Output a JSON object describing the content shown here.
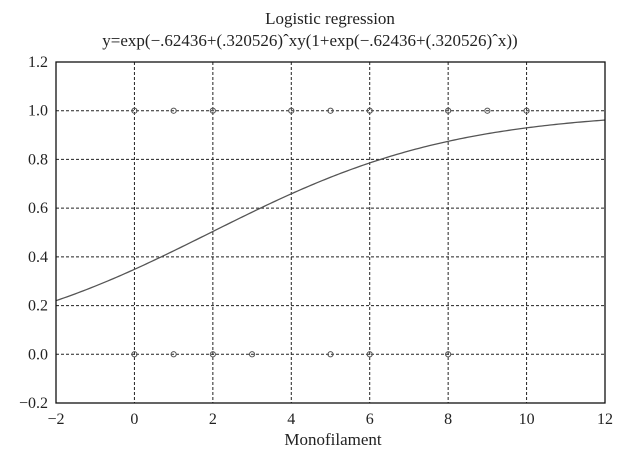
{
  "chart_data": {
    "type": "scatter",
    "title": "Logistic regression",
    "subtitle": "y=exp(−.62436+(.320526)ˆxy(1+exp(−.62436+(.320526)ˆx))",
    "xlabel": "Monofilament",
    "ylabel": "",
    "xlim": [
      -2,
      12
    ],
    "ylim": [
      -0.2,
      1.2
    ],
    "xticks": [
      -2,
      0,
      2,
      4,
      6,
      8,
      10,
      12
    ],
    "yticks": [
      -0.2,
      0.0,
      0.2,
      0.4,
      0.6,
      0.8,
      1.0,
      1.2
    ],
    "xtick_labels": [
      "−2",
      "0",
      "2",
      "4",
      "6",
      "8",
      "10",
      "12"
    ],
    "ytick_labels": [
      "−0.2",
      "0.0",
      "0.2",
      "0.4",
      "0.6",
      "0.8",
      "1.0",
      "1.2"
    ],
    "grid": true,
    "series": [
      {
        "type": "scatter",
        "x": [
          0,
          1,
          2,
          4,
          5,
          6,
          8,
          9,
          10,
          0,
          1,
          2,
          3,
          5,
          6,
          8
        ],
        "y": [
          1,
          1,
          1,
          1,
          1,
          1,
          1,
          1,
          1,
          0,
          0,
          0,
          0,
          0,
          0,
          0
        ],
        "color": "#555555"
      },
      {
        "type": "line",
        "model": "logistic",
        "intercept": -0.62436,
        "slope": 0.320526,
        "color": "#555555"
      }
    ]
  }
}
